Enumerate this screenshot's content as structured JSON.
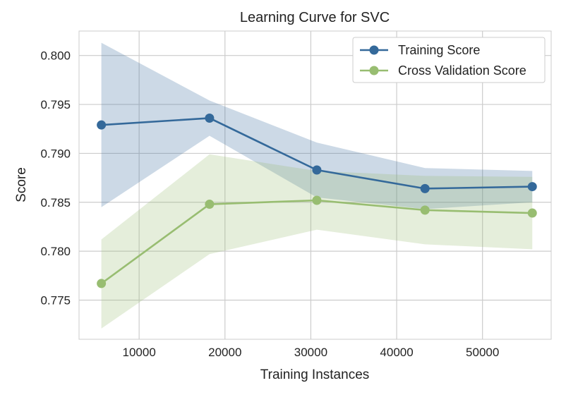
{
  "chart_data": {
    "type": "line",
    "title": "Learning Curve for SVC",
    "xlabel": "Training Instances",
    "ylabel": "Score",
    "xlim": [
      3000,
      58000
    ],
    "ylim": [
      0.771,
      0.8025
    ],
    "xticks": [
      10000,
      20000,
      30000,
      40000,
      50000
    ],
    "xtick_labels": [
      "10000",
      "20000",
      "30000",
      "40000",
      "50000"
    ],
    "yticks": [
      0.775,
      0.78,
      0.785,
      0.79,
      0.795,
      0.8
    ],
    "ytick_labels": [
      "0.775",
      "0.780",
      "0.785",
      "0.790",
      "0.795",
      "0.800"
    ],
    "grid": true,
    "legend_position": "top-right",
    "x": [
      5600,
      18200,
      30700,
      43300,
      55800
    ],
    "series": [
      {
        "name": "Training Score",
        "color": "#34699a",
        "values": [
          0.7929,
          0.7936,
          0.7883,
          0.7864,
          0.7866
        ],
        "band_upper": [
          0.8013,
          0.7954,
          0.7911,
          0.7885,
          0.7882
        ],
        "band_lower": [
          0.7845,
          0.7918,
          0.7855,
          0.7843,
          0.785
        ]
      },
      {
        "name": "Cross Validation Score",
        "color": "#98bd71",
        "values": [
          0.7767,
          0.7848,
          0.7852,
          0.7842,
          0.7839
        ],
        "band_upper": [
          0.7812,
          0.7899,
          0.7882,
          0.7877,
          0.7876
        ],
        "band_lower": [
          0.7721,
          0.7797,
          0.7822,
          0.7807,
          0.7802
        ]
      }
    ]
  }
}
